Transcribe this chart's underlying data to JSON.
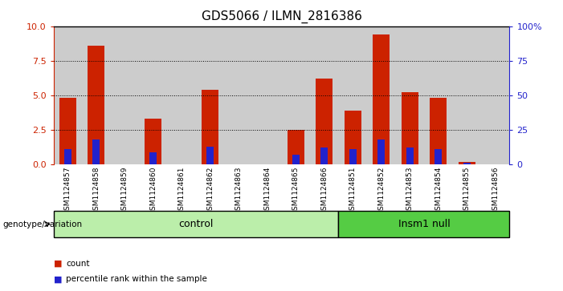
{
  "title": "GDS5066 / ILMN_2816386",
  "samples": [
    "GSM1124857",
    "GSM1124858",
    "GSM1124859",
    "GSM1124860",
    "GSM1124861",
    "GSM1124862",
    "GSM1124863",
    "GSM1124864",
    "GSM1124865",
    "GSM1124866",
    "GSM1124851",
    "GSM1124852",
    "GSM1124853",
    "GSM1124854",
    "GSM1124855",
    "GSM1124856"
  ],
  "counts": [
    4.8,
    8.6,
    0.0,
    3.3,
    0.0,
    5.4,
    0.0,
    0.0,
    2.5,
    6.2,
    3.9,
    9.4,
    5.2,
    4.8,
    0.2,
    0.0
  ],
  "percentile_left": [
    1.1,
    1.8,
    0.0,
    0.9,
    0.0,
    1.3,
    0.0,
    0.0,
    0.7,
    1.2,
    1.1,
    1.8,
    1.2,
    1.1,
    0.1,
    0.0
  ],
  "bar_color": "#cc2200",
  "blue_color": "#2222cc",
  "ylim_left": [
    0,
    10
  ],
  "ylim_right": [
    0,
    100
  ],
  "yticks_left": [
    0,
    2.5,
    5.0,
    7.5,
    10
  ],
  "yticks_right": [
    0,
    25,
    50,
    75,
    100
  ],
  "ytick_labels_right": [
    "0",
    "25",
    "50",
    "75",
    "100%"
  ],
  "grid_values": [
    2.5,
    5.0,
    7.5
  ],
  "control_label": "control",
  "insm1_label": "Insm1 null",
  "control_count": 10,
  "insm1_count": 6,
  "genotype_label": "genotype/variation",
  "legend_count": "count",
  "legend_percentile": "percentile rank within the sample",
  "control_bg": "#bbeeaa",
  "insm1_bg": "#55cc44",
  "bar_bg": "#cccccc",
  "bar_width": 0.6,
  "blue_bar_width": 0.25,
  "title_fontsize": 11
}
